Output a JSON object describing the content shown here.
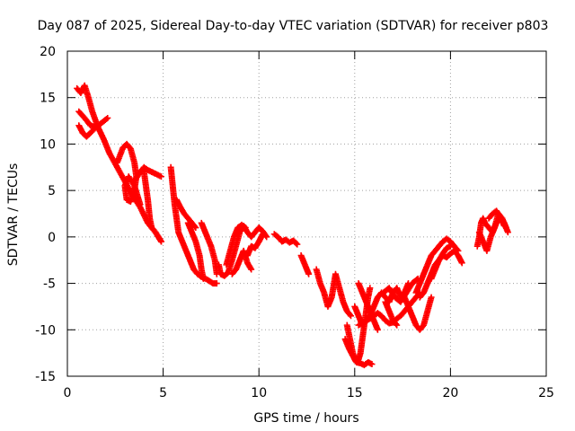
{
  "chart_data": {
    "type": "scatter",
    "title": "Day 087 of 2025, Sidereal Day-to-day VTEC variation (SDTVAR) for receiver p803",
    "xlabel": "GPS time / hours",
    "ylabel": "SDTVAR / TECUs",
    "xlim": [
      0,
      25
    ],
    "ylim": [
      -15,
      20
    ],
    "xticks": [
      0,
      5,
      10,
      15,
      20,
      25
    ],
    "yticks": [
      -15,
      -10,
      -5,
      0,
      5,
      10,
      15,
      20
    ],
    "grid": true,
    "marker": "plus",
    "color": "#ff0000",
    "segments": [
      {
        "x": [
          0.5,
          0.7,
          0.9,
          1.1,
          1.3,
          1.6,
          1.9,
          2.2,
          2.6,
          3.0,
          3.4,
          3.8,
          4.2,
          4.6,
          4.9
        ],
        "y": [
          16.0,
          15.5,
          16.3,
          15.0,
          13.5,
          11.8,
          10.5,
          9.0,
          7.5,
          6.0,
          4.5,
          3.2,
          1.5,
          0.5,
          -0.5
        ]
      },
      {
        "x": [
          0.6,
          0.9,
          1.2,
          1.5,
          1.8,
          2.1
        ],
        "y": [
          13.5,
          12.8,
          12.0,
          11.8,
          12.3,
          12.8
        ]
      },
      {
        "x": [
          0.6,
          0.8,
          1.0,
          1.2,
          1.5
        ],
        "y": [
          12.0,
          11.2,
          10.8,
          11.2,
          11.8
        ]
      },
      {
        "x": [
          2.6,
          2.9,
          3.1,
          3.3,
          3.5,
          3.6,
          3.5,
          3.3,
          3.1,
          3.0,
          3.2,
          3.5,
          3.8
        ],
        "y": [
          8.0,
          9.6,
          10.0,
          9.5,
          8.0,
          6.5,
          5.0,
          3.8,
          4.0,
          5.5,
          6.5,
          5.5,
          3.5
        ]
      },
      {
        "x": [
          3.5,
          3.8,
          4.0,
          4.2,
          4.4,
          4.6,
          4.9
        ],
        "y": [
          6.0,
          7.0,
          7.5,
          7.2,
          7.0,
          6.8,
          6.5
        ]
      },
      {
        "x": [
          4.0,
          4.2,
          4.3,
          4.4,
          4.6,
          4.9
        ],
        "y": [
          7.0,
          4.0,
          2.0,
          1.0,
          0.5,
          -0.5
        ]
      },
      {
        "x": [
          5.4,
          5.5,
          5.6,
          5.7,
          5.8,
          6.0,
          6.2,
          6.4,
          6.6,
          6.8,
          7.0,
          7.3,
          7.6,
          7.8
        ],
        "y": [
          7.5,
          5.5,
          3.5,
          2.0,
          0.5,
          -0.5,
          -1.5,
          -2.5,
          -3.5,
          -4.0,
          -4.3,
          -4.6,
          -5.0,
          -5.0
        ]
      },
      {
        "x": [
          5.7,
          5.9,
          6.1,
          6.3,
          6.5,
          6.7
        ],
        "y": [
          4.0,
          3.2,
          2.5,
          2.0,
          1.5,
          1.0
        ]
      },
      {
        "x": [
          6.3,
          6.5,
          6.7,
          6.9,
          7.0,
          7.1
        ],
        "y": [
          1.5,
          0.5,
          -0.5,
          -2.0,
          -3.5,
          -4.5
        ]
      },
      {
        "x": [
          7.0,
          7.2,
          7.5,
          7.7,
          7.8
        ],
        "y": [
          1.5,
          0.5,
          -1.0,
          -2.5,
          -4.0
        ]
      },
      {
        "x": [
          7.9,
          8.0,
          8.2,
          8.4,
          8.6,
          8.8,
          9.0,
          9.2,
          9.4,
          9.6,
          9.8,
          10.0,
          10.2,
          10.4
        ],
        "y": [
          -3.0,
          -4.0,
          -4.2,
          -3.8,
          -2.5,
          -1.0,
          0.5,
          1.2,
          0.5,
          0.0,
          0.5,
          1.0,
          0.6,
          0.0
        ]
      },
      {
        "x": [
          8.6,
          8.8,
          9.0,
          9.2,
          9.4,
          9.6
        ],
        "y": [
          -4.0,
          -3.5,
          -2.5,
          -1.5,
          -2.8,
          -3.5
        ]
      },
      {
        "x": [
          8.3,
          8.5,
          8.7,
          8.9,
          9.1,
          9.3
        ],
        "y": [
          -3.0,
          -1.5,
          0.0,
          1.0,
          1.3,
          1.0
        ]
      },
      {
        "x": [
          9.4,
          9.6,
          9.8,
          10.0,
          10.2
        ],
        "y": [
          -2.0,
          -1.0,
          -1.2,
          -0.5,
          0.3
        ]
      },
      {
        "x": [
          10.8,
          11.0,
          11.2,
          11.4,
          11.6,
          11.8,
          12.0
        ],
        "y": [
          0.3,
          0.0,
          -0.5,
          -0.3,
          -0.6,
          -0.4,
          -0.8
        ]
      },
      {
        "x": [
          12.2,
          12.4,
          12.6
        ],
        "y": [
          -2.0,
          -3.0,
          -4.0
        ]
      },
      {
        "x": [
          13.0,
          13.2,
          13.4,
          13.6,
          13.8,
          14.0,
          14.2,
          14.4,
          14.6,
          14.8
        ],
        "y": [
          -3.5,
          -5.0,
          -6.0,
          -7.5,
          -6.5,
          -4.0,
          -5.5,
          -7.0,
          -8.0,
          -8.5
        ]
      },
      {
        "x": [
          14.6,
          14.7,
          14.8,
          14.9,
          15.0,
          15.1,
          15.2,
          15.3,
          15.4,
          15.5,
          15.6,
          15.7,
          15.8
        ],
        "y": [
          -9.5,
          -10.5,
          -11.5,
          -12.5,
          -13.2,
          -13.5,
          -13.2,
          -12.5,
          -11.0,
          -9.5,
          -8.0,
          -6.5,
          -5.5
        ]
      },
      {
        "x": [
          14.5,
          14.7,
          14.9,
          15.1,
          15.3,
          15.5,
          15.7,
          15.9
        ],
        "y": [
          -11.0,
          -12.0,
          -12.8,
          -13.5,
          -13.6,
          -13.8,
          -13.5,
          -13.7
        ]
      },
      {
        "x": [
          15.0,
          15.2,
          15.4,
          15.6,
          15.8,
          16.0,
          16.2,
          16.4,
          16.6,
          16.8,
          17.0,
          17.2,
          17.4,
          17.6,
          17.8
        ],
        "y": [
          -7.5,
          -8.5,
          -9.5,
          -9.0,
          -8.5,
          -7.5,
          -6.5,
          -6.0,
          -6.5,
          -7.0,
          -6.0,
          -5.5,
          -6.5,
          -6.0,
          -5.0
        ]
      },
      {
        "x": [
          15.2,
          15.4,
          15.6,
          15.8,
          16.0,
          16.2,
          16.4,
          16.6,
          16.8,
          17.0,
          17.2,
          17.4,
          17.6,
          17.8,
          18.0,
          18.2,
          18.4
        ],
        "y": [
          -9.5,
          -9.3,
          -9.0,
          -8.8,
          -8.5,
          -8.2,
          -8.5,
          -9.0,
          -9.3,
          -9.2,
          -8.8,
          -8.5,
          -8.0,
          -7.5,
          -7.0,
          -6.5,
          -6.0
        ]
      },
      {
        "x": [
          15.2,
          15.4,
          15.6,
          15.8,
          16.0,
          16.2
        ],
        "y": [
          -5.0,
          -6.0,
          -7.0,
          -8.0,
          -9.0,
          -10.0
        ]
      },
      {
        "x": [
          16.5,
          16.8,
          17.1,
          17.4,
          17.7,
          18.0,
          18.3
        ],
        "y": [
          -6.0,
          -5.5,
          -6.5,
          -7.0,
          -6.0,
          -5.0,
          -4.5
        ]
      },
      {
        "x": [
          16.6,
          16.8,
          17.0,
          17.2
        ],
        "y": [
          -7.0,
          -8.0,
          -9.0,
          -9.5
        ]
      },
      {
        "x": [
          17.6,
          17.8,
          18.0,
          18.2,
          18.4,
          18.6,
          18.8,
          19.0
        ],
        "y": [
          -6.5,
          -7.5,
          -8.5,
          -9.5,
          -10.0,
          -9.5,
          -8.0,
          -6.5
        ]
      },
      {
        "x": [
          18.2,
          18.4,
          18.6,
          18.8,
          19.0,
          19.2,
          19.4,
          19.6,
          19.8,
          20.0,
          20.2,
          20.4
        ],
        "y": [
          -6.0,
          -5.0,
          -4.0,
          -3.0,
          -2.0,
          -1.5,
          -1.0,
          -0.5,
          -0.2,
          -0.5,
          -1.0,
          -1.5
        ]
      },
      {
        "x": [
          18.4,
          18.6,
          18.8,
          19.0,
          19.2,
          19.4,
          19.6,
          19.8,
          20.0,
          20.2,
          20.4,
          20.6
        ],
        "y": [
          -6.5,
          -6.0,
          -5.0,
          -4.0,
          -3.0,
          -2.5,
          -2.0,
          -2.2,
          -1.8,
          -1.5,
          -2.0,
          -2.8
        ]
      },
      {
        "x": [
          19.0,
          19.2,
          19.4,
          19.6,
          19.8,
          20.0
        ],
        "y": [
          -4.5,
          -3.5,
          -2.5,
          -1.8,
          -1.2,
          -1.0
        ]
      },
      {
        "x": [
          21.4,
          21.5,
          21.6,
          21.7,
          21.8,
          22.0,
          22.2,
          22.4,
          22.6,
          22.8,
          23.0
        ],
        "y": [
          -1.0,
          0.0,
          1.5,
          2.0,
          1.5,
          1.0,
          0.5,
          1.5,
          2.0,
          1.5,
          0.5
        ]
      },
      {
        "x": [
          21.5,
          21.7,
          21.9,
          22.1,
          22.3,
          22.5,
          22.7,
          22.9
        ],
        "y": [
          0.5,
          -0.5,
          -1.5,
          0.0,
          1.0,
          2.5,
          2.0,
          1.0
        ]
      },
      {
        "x": [
          22.0,
          22.2,
          22.4,
          22.6,
          22.8
        ],
        "y": [
          2.0,
          2.5,
          2.8,
          2.2,
          1.2
        ]
      }
    ]
  }
}
